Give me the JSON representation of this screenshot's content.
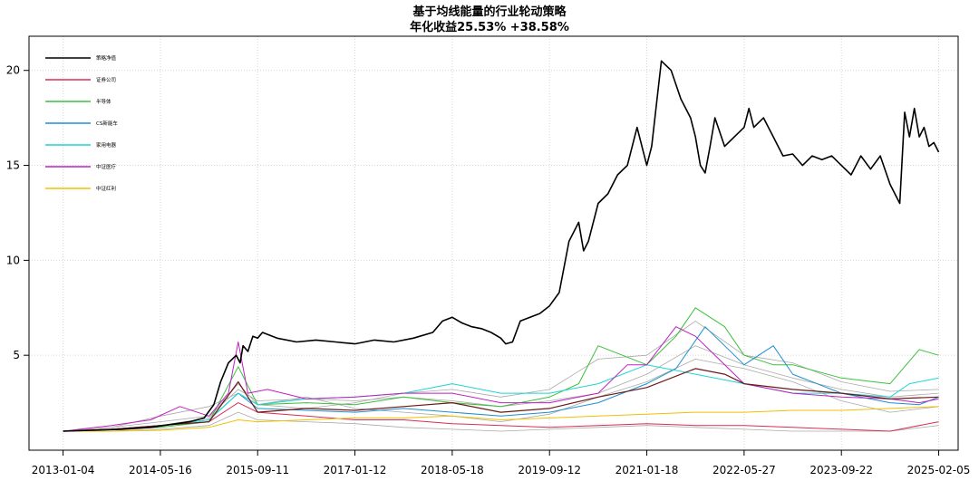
{
  "chart_data": {
    "type": "line",
    "title": "基于均线能量的行业轮动策略",
    "subtitle": "年化收益25.53%  +38.58%",
    "x_tick_labels": [
      "2013-01-04",
      "2014-05-16",
      "2015-09-11",
      "2017-01-12",
      "2018-05-18",
      "2019-09-12",
      "2021-01-18",
      "2022-05-27",
      "2023-09-22",
      "2025-02-05"
    ],
    "x_tick_index": [
      0,
      1,
      2,
      3,
      4,
      5,
      6,
      7,
      8,
      9
    ],
    "x_range": [
      -0.35,
      9.2
    ],
    "y_ticks": [
      5,
      10,
      15,
      20
    ],
    "ylim": [
      0,
      21.8
    ],
    "grid": true,
    "legend_position": "top-left",
    "series": [
      {
        "name": "策略净值",
        "color": "#000000",
        "width": 1.6,
        "x": [
          0,
          0.3,
          0.6,
          0.9,
          1.1,
          1.3,
          1.45,
          1.55,
          1.62,
          1.7,
          1.78,
          1.82,
          1.85,
          1.9,
          1.95,
          2.0,
          2.05,
          2.1,
          2.2,
          2.4,
          2.6,
          2.8,
          3.0,
          3.2,
          3.4,
          3.6,
          3.8,
          3.9,
          4.0,
          4.1,
          4.2,
          4.3,
          4.4,
          4.5,
          4.55,
          4.62,
          4.7,
          4.8,
          4.9,
          5.0,
          5.1,
          5.2,
          5.3,
          5.35,
          5.4,
          5.5,
          5.6,
          5.7,
          5.8,
          5.9,
          6.0,
          6.05,
          6.15,
          6.25,
          6.35,
          6.4,
          6.45,
          6.5,
          6.55,
          6.6,
          6.65,
          6.7,
          6.8,
          6.9,
          7.0,
          7.05,
          7.1,
          7.2,
          7.3,
          7.4,
          7.5,
          7.6,
          7.7,
          7.8,
          7.9,
          8.0,
          8.1,
          8.2,
          8.3,
          8.4,
          8.5,
          8.6,
          8.65,
          8.7,
          8.75,
          8.8,
          8.85,
          8.9,
          8.95,
          9.0
        ],
        "y": [
          1.0,
          1.05,
          1.1,
          1.2,
          1.35,
          1.5,
          1.7,
          2.4,
          3.6,
          4.6,
          5.0,
          4.6,
          5.5,
          5.2,
          6.0,
          5.9,
          6.2,
          6.1,
          5.9,
          5.7,
          5.8,
          5.7,
          5.6,
          5.8,
          5.7,
          5.9,
          6.2,
          6.8,
          7.0,
          6.7,
          6.5,
          6.4,
          6.2,
          5.9,
          5.6,
          5.7,
          6.8,
          7.0,
          7.2,
          7.6,
          8.3,
          11.0,
          12.0,
          10.5,
          11.0,
          13.0,
          13.5,
          14.5,
          15.0,
          17.0,
          15.0,
          16.0,
          20.5,
          20.0,
          18.5,
          18.0,
          17.5,
          16.5,
          15.0,
          14.6,
          16.0,
          17.5,
          16.0,
          16.5,
          17.0,
          18.0,
          17.0,
          17.5,
          16.5,
          15.5,
          15.6,
          15.0,
          15.5,
          15.3,
          15.5,
          15.0,
          14.5,
          15.5,
          14.8,
          15.5,
          14.0,
          13.0,
          17.8,
          16.5,
          18.0,
          16.5,
          17.0,
          16.0,
          16.2,
          15.7
        ]
      },
      {
        "name": "证券公司",
        "color": "#d62e55",
        "width": 1.0,
        "x": [
          0,
          0.5,
          1.0,
          1.5,
          1.8,
          2.0,
          2.5,
          3.0,
          3.5,
          4.0,
          4.5,
          5.0,
          5.5,
          6.0,
          6.5,
          7.0,
          7.5,
          8.0,
          8.5,
          9.0
        ],
        "y": [
          1.0,
          1.1,
          1.3,
          1.5,
          2.5,
          2.0,
          1.8,
          1.6,
          1.6,
          1.4,
          1.3,
          1.2,
          1.3,
          1.4,
          1.3,
          1.3,
          1.2,
          1.1,
          1.0,
          1.5
        ]
      },
      {
        "name": "半导体",
        "color": "#3cc03c",
        "width": 1.0,
        "x": [
          0,
          0.5,
          1.0,
          1.5,
          1.8,
          2.0,
          2.5,
          3.0,
          3.5,
          4.0,
          4.5,
          5.0,
          5.3,
          5.5,
          6.0,
          6.3,
          6.5,
          6.8,
          7.0,
          7.3,
          7.5,
          8.0,
          8.5,
          8.8,
          9.0
        ],
        "y": [
          1.0,
          1.1,
          1.2,
          1.5,
          4.4,
          2.4,
          2.5,
          2.4,
          2.8,
          2.5,
          2.3,
          2.8,
          3.5,
          5.5,
          4.5,
          6.0,
          7.5,
          6.5,
          5.0,
          4.5,
          4.5,
          3.8,
          3.5,
          5.3,
          5.0
        ]
      },
      {
        "name": "CS新能车",
        "color": "#1e8fd0",
        "width": 1.0,
        "x": [
          0,
          0.5,
          1.0,
          1.5,
          1.8,
          2.0,
          2.5,
          3.0,
          3.5,
          4.0,
          4.5,
          5.0,
          5.5,
          6.0,
          6.3,
          6.6,
          6.8,
          7.0,
          7.3,
          7.5,
          8.0,
          8.5,
          8.8,
          9.0
        ],
        "y": [
          1.0,
          1.1,
          1.3,
          1.6,
          3.0,
          2.2,
          2.1,
          2.0,
          2.2,
          2.0,
          1.8,
          2.0,
          2.5,
          3.5,
          4.3,
          6.5,
          5.5,
          4.5,
          5.5,
          4.0,
          3.0,
          2.5,
          2.4,
          2.8
        ]
      },
      {
        "name": "家用电器",
        "color": "#1ed4d4",
        "width": 1.0,
        "x": [
          0,
          0.5,
          1.0,
          1.5,
          1.8,
          2.0,
          2.5,
          3.0,
          3.5,
          4.0,
          4.5,
          5.0,
          5.5,
          6.0,
          6.5,
          7.0,
          7.5,
          8.0,
          8.5,
          8.7,
          9.0
        ],
        "y": [
          1.0,
          1.1,
          1.3,
          1.6,
          3.0,
          2.4,
          2.7,
          2.8,
          3.0,
          3.5,
          3.0,
          3.0,
          3.5,
          4.5,
          4.0,
          3.5,
          3.0,
          3.0,
          2.8,
          3.5,
          3.8
        ]
      },
      {
        "name": "中证医疗",
        "color": "#c020c0",
        "width": 1.0,
        "x": [
          0,
          0.5,
          0.9,
          1.2,
          1.5,
          1.7,
          1.8,
          1.9,
          2.1,
          2.5,
          3.0,
          3.5,
          4.0,
          4.5,
          5.0,
          5.5,
          5.8,
          6.0,
          6.3,
          6.5,
          7.0,
          7.5,
          8.0,
          8.5,
          8.8,
          9.0
        ],
        "y": [
          1.0,
          1.3,
          1.6,
          2.3,
          1.8,
          3.0,
          5.7,
          3.0,
          3.2,
          2.7,
          2.8,
          3.0,
          3.0,
          2.5,
          2.5,
          3.0,
          4.5,
          4.5,
          6.5,
          6.0,
          3.5,
          3.0,
          2.8,
          2.7,
          2.5,
          2.7
        ]
      },
      {
        "name": "中证红利",
        "color": "#f0c000",
        "width": 1.0,
        "x": [
          0,
          0.5,
          1.0,
          1.5,
          1.8,
          2.0,
          2.5,
          3.0,
          3.5,
          4.0,
          4.5,
          5.0,
          5.5,
          6.0,
          6.5,
          7.0,
          7.5,
          8.0,
          8.5,
          9.0
        ],
        "y": [
          1.0,
          1.0,
          1.05,
          1.2,
          1.6,
          1.5,
          1.6,
          1.7,
          1.7,
          1.8,
          1.6,
          1.7,
          1.8,
          1.9,
          2.0,
          2.0,
          2.1,
          2.1,
          2.2,
          2.3
        ]
      },
      {
        "name": "",
        "color": "#6b1a1a",
        "width": 1.2,
        "x": [
          0,
          0.5,
          1.0,
          1.5,
          1.8,
          2.0,
          2.5,
          3.0,
          3.5,
          4.0,
          4.5,
          5.0,
          5.5,
          6.0,
          6.5,
          6.8,
          7.0,
          7.5,
          8.0,
          8.5,
          9.0
        ],
        "y": [
          1.0,
          1.1,
          1.3,
          1.5,
          3.6,
          2.0,
          2.2,
          2.1,
          2.3,
          2.5,
          2.0,
          2.2,
          2.8,
          3.3,
          4.3,
          4.0,
          3.5,
          3.2,
          3.0,
          2.7,
          2.8
        ]
      },
      {
        "name": "",
        "color": "#aaaaaa",
        "width": 0.8,
        "x": [
          0,
          0.5,
          1.0,
          1.5,
          1.8,
          2.0,
          2.5,
          3.0,
          3.5,
          4.0,
          4.5,
          5.0,
          5.5,
          6.0,
          6.5,
          7.0,
          7.5,
          8.0,
          8.5,
          9.0
        ],
        "y": [
          1.0,
          1.2,
          1.5,
          1.8,
          3.2,
          2.6,
          2.7,
          2.6,
          2.8,
          2.6,
          2.3,
          2.6,
          3.0,
          4.0,
          5.5,
          4.5,
          3.8,
          3.2,
          2.8,
          3.0
        ]
      },
      {
        "name": "",
        "color": "#aaaaaa",
        "width": 0.8,
        "x": [
          0,
          0.5,
          1.0,
          1.5,
          1.8,
          2.0,
          2.5,
          3.0,
          3.5,
          4.0,
          4.5,
          5.0,
          5.5,
          6.0,
          6.5,
          7.0,
          7.5,
          8.0,
          8.5,
          9.0
        ],
        "y": [
          1.0,
          1.0,
          1.1,
          1.3,
          2.0,
          1.6,
          1.5,
          1.4,
          1.2,
          1.1,
          1.0,
          1.1,
          1.2,
          1.3,
          1.2,
          1.1,
          1.0,
          1.0,
          1.0,
          1.3
        ]
      },
      {
        "name": "",
        "color": "#aaaaaa",
        "width": 0.8,
        "x": [
          0,
          0.5,
          1.0,
          1.5,
          1.8,
          2.0,
          2.5,
          3.0,
          3.5,
          4.0,
          4.5,
          5.0,
          5.5,
          6.0,
          6.5,
          7.0,
          7.5,
          8.0,
          8.5,
          9.0
        ],
        "y": [
          1.0,
          1.2,
          1.8,
          2.3,
          3.0,
          2.4,
          2.8,
          2.2,
          2.0,
          1.8,
          1.5,
          1.9,
          2.8,
          3.6,
          4.8,
          4.3,
          3.6,
          2.6,
          2.0,
          2.3
        ]
      },
      {
        "name": "",
        "color": "#aaaaaa",
        "width": 0.8,
        "x": [
          0,
          0.5,
          1.0,
          1.5,
          1.8,
          2.0,
          2.5,
          3.0,
          3.5,
          4.0,
          4.5,
          5.0,
          5.5,
          6.0,
          6.5,
          7.0,
          7.5,
          8.0,
          8.5,
          9.0
        ],
        "y": [
          1.0,
          1.1,
          1.3,
          1.7,
          3.5,
          2.4,
          2.2,
          2.5,
          3.0,
          3.2,
          2.8,
          3.2,
          4.8,
          5.0,
          6.8,
          5.0,
          4.6,
          3.6,
          3.1,
          3.2
        ]
      }
    ]
  }
}
